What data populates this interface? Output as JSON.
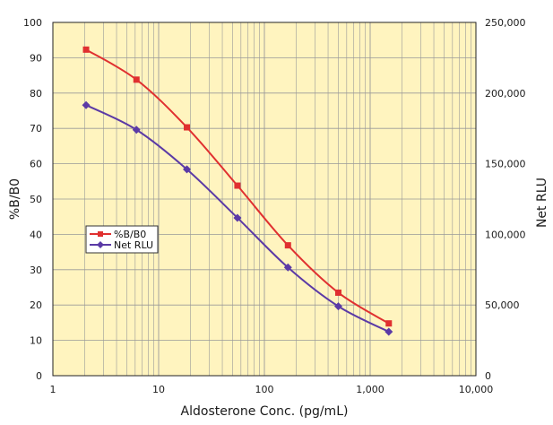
{
  "chart_data": {
    "type": "line",
    "x_scale": "log",
    "xlim": [
      1,
      10000
    ],
    "x_tick_values": [
      1,
      10,
      100,
      1000,
      10000
    ],
    "x_tick_labels": [
      "1",
      "10",
      "100",
      "1,000",
      "10,000"
    ],
    "ylim": [
      0,
      100
    ],
    "y_tick_values": [
      0,
      10,
      20,
      30,
      40,
      50,
      60,
      70,
      80,
      90,
      100
    ],
    "y_tick_labels": [
      "0",
      "10",
      "20",
      "30",
      "40",
      "50",
      "60",
      "70",
      "80",
      "90",
      "100"
    ],
    "y2lim": [
      0,
      250000
    ],
    "y2_tick_values": [
      0,
      50000,
      100000,
      150000,
      200000,
      250000
    ],
    "y2_tick_labels": [
      "0",
      "50,000",
      "100,000",
      "150,000",
      "200,000",
      "250,000"
    ],
    "xlabel": "Aldosterone Conc. (pg/mL)",
    "ylabel": "%B/B0",
    "y2label": "Net RLU",
    "grid": true,
    "legend_position": "left-middle",
    "background_color": "#fff4bf",
    "grid_color": "#999999",
    "series": [
      {
        "name": "%B/B0",
        "axis": "left",
        "color": "#e03030",
        "marker": "square",
        "x": [
          2.06,
          6.17,
          18.5,
          55.6,
          167,
          500,
          1500
        ],
        "y": [
          92.3,
          83.8,
          70.3,
          53.8,
          36.9,
          23.5,
          14.8
        ]
      },
      {
        "name": "Net RLU",
        "axis": "right",
        "color": "#5b3aa6",
        "marker": "diamond",
        "x": [
          2.06,
          6.17,
          18.5,
          55.6,
          167,
          500,
          1500
        ],
        "y": [
          191500,
          174000,
          146000,
          111700,
          76600,
          49100,
          31100
        ]
      }
    ]
  }
}
